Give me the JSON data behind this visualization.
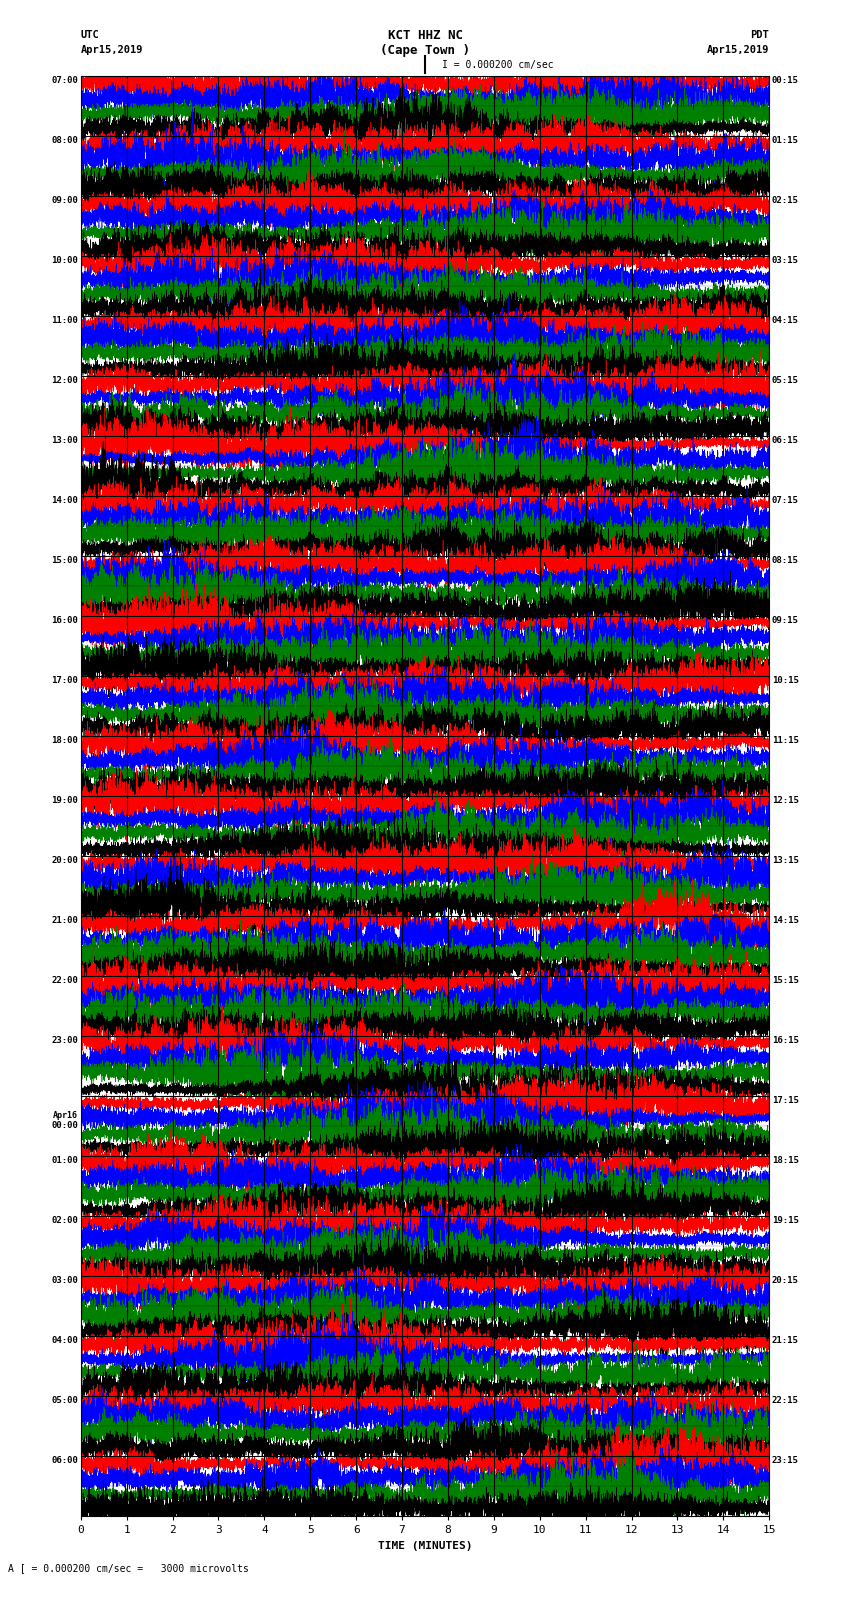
{
  "title_line1": "KCT HHZ NC",
  "title_line2": "(Cape Town )",
  "scale_label": "I = 0.000200 cm/sec",
  "left_header": "UTC",
  "left_date": "Apr15,2019",
  "right_header": "PDT",
  "right_date": "Apr15,2019",
  "bottom_label": "TIME (MINUTES)",
  "bottom_note": "A [ = 0.000200 cm/sec =   3000 microvolts",
  "utc_times": [
    "07:00",
    "08:00",
    "09:00",
    "10:00",
    "11:00",
    "12:00",
    "13:00",
    "14:00",
    "15:00",
    "16:00",
    "17:00",
    "18:00",
    "19:00",
    "20:00",
    "21:00",
    "22:00",
    "23:00",
    "Apr16|00:00",
    "01:00",
    "02:00",
    "03:00",
    "04:00",
    "05:00",
    "06:00"
  ],
  "pdt_times": [
    "00:15",
    "01:15",
    "02:15",
    "03:15",
    "04:15",
    "05:15",
    "06:15",
    "07:15",
    "08:15",
    "09:15",
    "10:15",
    "11:15",
    "12:15",
    "13:15",
    "14:15",
    "15:15",
    "16:15",
    "17:15",
    "18:15",
    "19:15",
    "20:15",
    "21:15",
    "22:15",
    "23:15"
  ],
  "n_rows": 24,
  "n_cols": 15,
  "bg_color": "#ffffff",
  "colors": [
    "red",
    "blue",
    "green",
    "black"
  ],
  "sub_offsets": [
    0.75,
    0.5,
    0.25,
    0.0
  ],
  "trace_lw": 0.4,
  "fig_width": 8.5,
  "fig_height": 16.13,
  "x_ticks": [
    0,
    1,
    2,
    3,
    4,
    5,
    6,
    7,
    8,
    9,
    10,
    11,
    12,
    13,
    14,
    15
  ],
  "amplitude": 0.12,
  "n_points": 15000,
  "seed": 42
}
